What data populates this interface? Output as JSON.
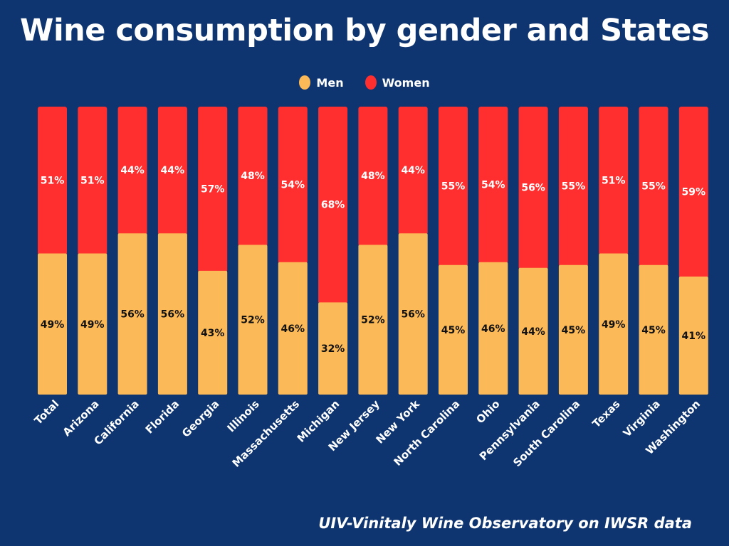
{
  "chart_data": {
    "type": "bar",
    "stacked": true,
    "orientation": "vertical",
    "title": "Wine consumption by gender and States",
    "xlabel": "",
    "ylabel": "",
    "ylim": [
      0,
      100
    ],
    "grid": false,
    "legend_position": "top-center",
    "categories": [
      "Total",
      "Arizona",
      "California",
      "Florida",
      "Georgia",
      "Illinois",
      "Massachusetts",
      "Michigan",
      "New Jersey",
      "New York",
      "North Carolina",
      "Ohio",
      "Pennsylvania",
      "South Carolina",
      "Texas",
      "Virginia",
      "Washington"
    ],
    "series": [
      {
        "name": "Men",
        "color": "#fbb957",
        "values": [
          49,
          49,
          56,
          56,
          43,
          52,
          46,
          32,
          52,
          56,
          45,
          46,
          44,
          45,
          49,
          45,
          41
        ]
      },
      {
        "name": "Women",
        "color": "#ff2f2f",
        "values": [
          51,
          51,
          44,
          44,
          57,
          48,
          54,
          68,
          48,
          44,
          55,
          54,
          56,
          55,
          51,
          55,
          59
        ]
      }
    ],
    "value_suffix": "%"
  },
  "legend": {
    "items": [
      {
        "label": "Men",
        "color": "#fbb957"
      },
      {
        "label": "Women",
        "color": "#ff2f2f"
      }
    ]
  },
  "source": "UIV-Vinitaly Wine Observatory on IWSR data",
  "colors": {
    "background": "#0f3570",
    "men_label_text": "#111111",
    "women_label_text": "#ffffff"
  }
}
